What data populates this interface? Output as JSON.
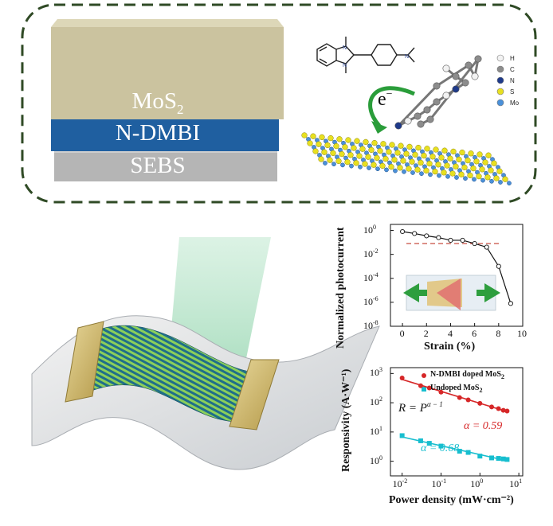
{
  "top_panel": {
    "layers": {
      "top": {
        "text": "MoS",
        "sub": "2",
        "color": "#cbc39f"
      },
      "middle": {
        "text": "N-DMBI",
        "color": "#1f5fa0"
      },
      "bottom": {
        "text": "SEBS",
        "color": "#b5b5b5"
      }
    },
    "electron_label": {
      "base": "e",
      "sup": "−"
    },
    "atom_legend": [
      {
        "symbol": "H",
        "color": "#f2f2f2"
      },
      {
        "symbol": "C",
        "color": "#8c8c8c"
      },
      {
        "symbol": "N",
        "color": "#1e3a8a"
      },
      {
        "symbol": "S",
        "color": "#e8e020"
      },
      {
        "symbol": "Mo",
        "color": "#4a90d9"
      }
    ],
    "border_color": "#2f4a25"
  },
  "chart_data": [
    {
      "type": "line",
      "xlabel": "Strain (%)",
      "ylabel": "Normalized photocurrent",
      "xlim": [
        -1,
        10
      ],
      "ylim_log10": [
        -8,
        0.5
      ],
      "x_ticks": [
        "0",
        "2",
        "4",
        "6",
        "8",
        "10"
      ],
      "y_ticks": [
        {
          "base": "10",
          "exp": "0"
        },
        {
          "base": "10",
          "exp": "-2"
        },
        {
          "base": "10",
          "exp": "-4"
        },
        {
          "base": "10",
          "exp": "-6"
        },
        {
          "base": "10",
          "exp": "-8"
        }
      ],
      "series": [
        {
          "x": [
            0,
            1,
            2,
            3,
            4,
            5,
            6,
            7,
            8,
            9
          ],
          "y": [
            0.8,
            0.55,
            0.35,
            0.25,
            0.15,
            0.15,
            0.08,
            0.04,
            0.001,
            8e-07
          ]
        }
      ],
      "threshold_y": 0.08
    },
    {
      "type": "scatter",
      "xlabel": "Power density (mW·cm⁻²)",
      "ylabel": "Responsivity (A·W⁻¹)",
      "log_x": true,
      "log_y": true,
      "xlim_log10": [
        -2.3,
        1.1
      ],
      "ylim_log10": [
        -0.5,
        3.2
      ],
      "x_ticks": [
        {
          "base": "10",
          "exp": "-2"
        },
        {
          "base": "10",
          "exp": "-1"
        },
        {
          "base": "10",
          "exp": "0"
        },
        {
          "base": "10",
          "exp": "1"
        }
      ],
      "y_ticks": [
        {
          "base": "10",
          "exp": "0"
        },
        {
          "base": "10",
          "exp": "1"
        },
        {
          "base": "10",
          "exp": "2"
        },
        {
          "base": "10",
          "exp": "3"
        }
      ],
      "legend": [
        {
          "name": "N-DMBI doped MoS",
          "sub": "2",
          "color": "#d62728"
        },
        {
          "name": "Undoped MoS",
          "sub": "2",
          "color": "#17becf"
        }
      ],
      "equation": "R = P",
      "equation_sup": "α − 1",
      "series": [
        {
          "name": "N-DMBI doped MoS2",
          "color": "#d62728",
          "alpha_label": "α = 0.59",
          "x": [
            0.01,
            0.03,
            0.05,
            0.1,
            0.3,
            0.5,
            1,
            2,
            3,
            4,
            5
          ],
          "y": [
            700,
            380,
            320,
            230,
            150,
            125,
            95,
            72,
            63,
            55,
            52
          ]
        },
        {
          "name": "Undoped MoS2",
          "color": "#17becf",
          "alpha_label": "α = 0.68",
          "x": [
            0.01,
            0.03,
            0.05,
            0.1,
            0.3,
            0.5,
            1,
            2,
            3,
            4,
            5
          ],
          "y": [
            7.5,
            5,
            4.1,
            3.3,
            2.2,
            2.0,
            1.5,
            1.3,
            1.25,
            1.2,
            1.15
          ]
        }
      ]
    }
  ]
}
